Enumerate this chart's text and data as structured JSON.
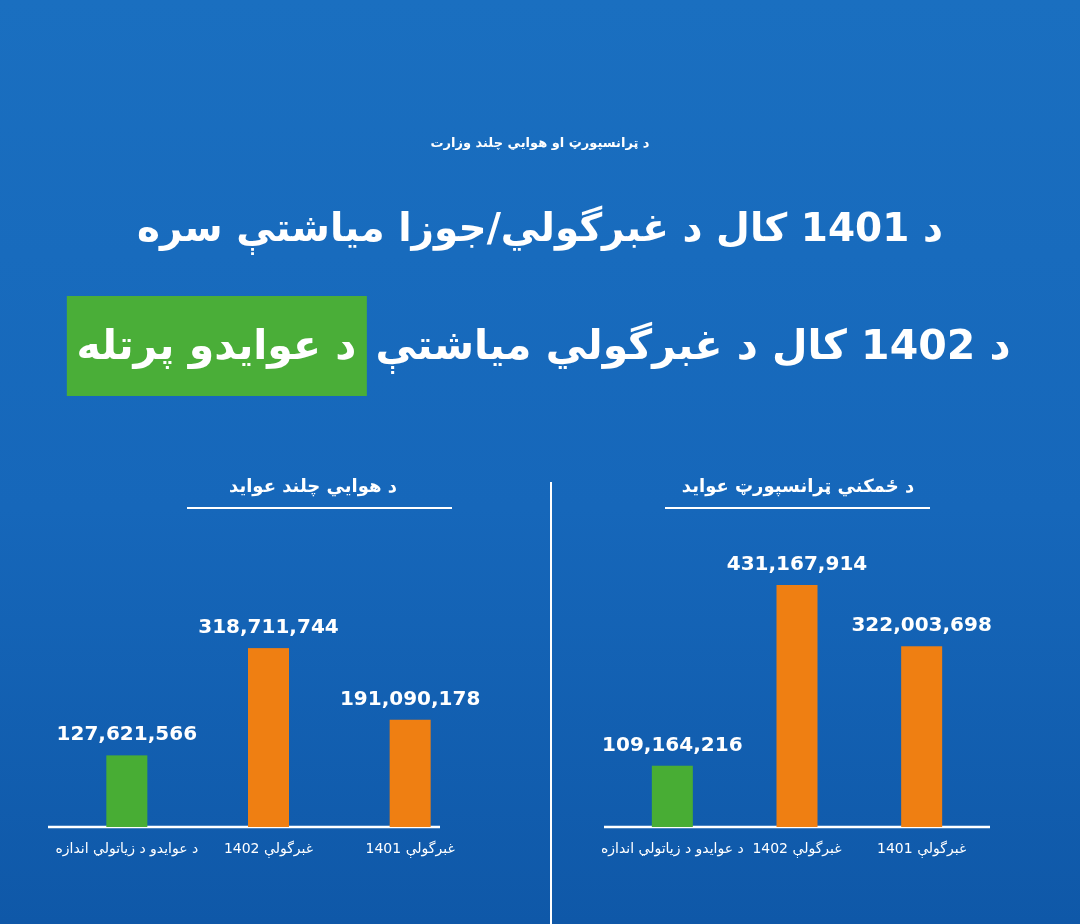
{
  "chart_data": [
    {
      "type": "bar",
      "title": "د ځمکني ټرانسپورټ عوايد",
      "annotations": [
        "د ټرانسپورټ او هوايي چلند وزارت",
        "د 1401 کال د غبرگولي/جوزا مياشتې سره",
        "د 1402 کال د غبرگولي مياشتې",
        "د عوايدو پرتله"
      ],
      "categories": [
        "د عوايدو د زياتولي اندازه",
        "غبرگولې 1402",
        "غبرگولې 1401"
      ],
      "values": [
        109164216,
        431167914,
        322003698
      ],
      "value_labels": [
        "109,164,216",
        "431,167,914",
        "322,003,698"
      ],
      "colors": [
        "#48ad34",
        "#ef7f12",
        "#ef7f12"
      ]
    },
    {
      "type": "bar",
      "title": "د هوايي چلند عوايد",
      "categories": [
        "د عوايدو د زياتولي اندازه",
        "غبرگولې 1402",
        "غبرگولې 1401"
      ],
      "values": [
        127621566,
        318711744,
        191090178
      ],
      "value_labels": [
        "127,621,566",
        "318,711,744",
        "191,090,178"
      ],
      "colors": [
        "#48ad34",
        "#ef7f12",
        "#ef7f12"
      ]
    }
  ]
}
